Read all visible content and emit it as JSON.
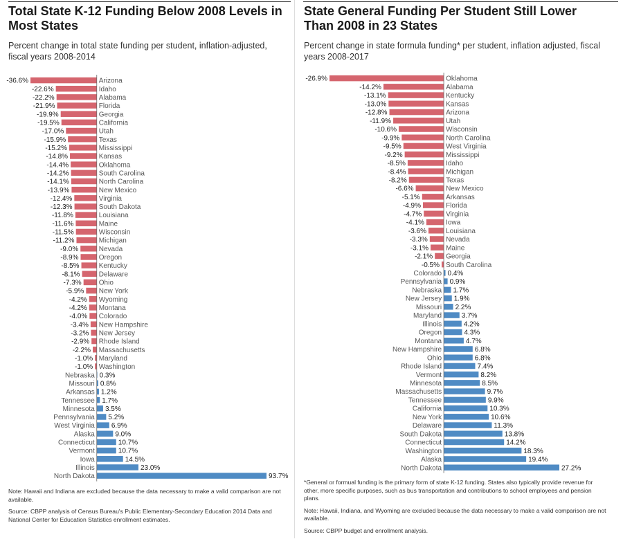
{
  "left": {
    "title": "Total State K-12 Funding Below 2008 Levels in Most States",
    "subtitle": "Percent change in total state funding per student, inflation-adjusted, fiscal years 2008-2014",
    "notes": [
      "Note: Hawaii and Indiana are excluded because the data necessary to make a valid comparison are not available.",
      "Source: CBPP analysis of Census Bureau's Public Elementary-Secondary Education 2014 Data and National Center for Education Statistics enrollment estimates."
    ]
  },
  "right": {
    "title": "State General Funding Per Student Still Lower Than 2008 in 23 States",
    "subtitle": "Percent change in state formula funding* per student, inflation adjusted, fiscal years 2008-2017",
    "notes": [
      "*General or formual funding is the primary form of state K-12 funding. States also typically provide revenue for other, more specific purposes, such as bus transportation and contributions to school employees and pension plans.",
      "Note: Hawaii, Indiana, and Wyoming are excluded because the data necessary to make a valid comparison are not available.",
      "Source: CBPP budget and enrollment analysis."
    ]
  },
  "colors": {
    "negative": "#d5656e",
    "positive": "#4f8bc4"
  },
  "chart_data": [
    {
      "type": "bar",
      "orientation": "horizontal",
      "title": "Total State K-12 Funding Below 2008 Levels in Most States",
      "subtitle": "Percent change in total state funding per student, inflation-adjusted, fiscal years 2008-2014",
      "categories": [
        "Arizona",
        "Idaho",
        "Alabama",
        "Florida",
        "Georgia",
        "California",
        "Utah",
        "Texas",
        "Mississippi",
        "Kansas",
        "Oklahoma",
        "South Carolina",
        "North Carolina",
        "New Mexico",
        "Virginia",
        "South Dakota",
        "Louisiana",
        "Maine",
        "Wisconsin",
        "Michigan",
        "Nevada",
        "Oregon",
        "Kentucky",
        "Delaware",
        "Ohio",
        "New York",
        "Wyoming",
        "Montana",
        "Colorado",
        "New Hampshire",
        "New Jersey",
        "Rhode Island",
        "Massachusetts",
        "Maryland",
        "Washington",
        "Nebraska",
        "Missouri",
        "Arkansas",
        "Tennessee",
        "Minnesota",
        "Pennsylvania",
        "West Virginia",
        "Alaska",
        "Connecticut",
        "Vermont",
        "Iowa",
        "Illinois",
        "North Dakota"
      ],
      "values": [
        -36.6,
        -22.6,
        -22.2,
        -21.9,
        -19.9,
        -19.5,
        -17.0,
        -15.9,
        -15.2,
        -14.8,
        -14.4,
        -14.2,
        -14.1,
        -13.9,
        -12.4,
        -12.3,
        -11.8,
        -11.6,
        -11.5,
        -11.2,
        -9.0,
        -8.9,
        -8.5,
        -8.1,
        -7.3,
        -5.9,
        -4.2,
        -4.2,
        -4.0,
        -3.4,
        -3.2,
        -2.9,
        -2.2,
        -1.0,
        -1.0,
        0.3,
        0.8,
        1.2,
        1.7,
        3.5,
        5.2,
        6.9,
        9.0,
        10.7,
        10.7,
        14.5,
        23.0,
        93.7
      ],
      "labels": [
        "-36.6%",
        "-22.6%",
        "-22.2%",
        "-21.9%",
        "-19.9%",
        "-19.5%",
        "-17.0%",
        "-15.9%",
        "-15.2%",
        "-14.8%",
        "-14.4%",
        "-14.2%",
        "-14.1%",
        "-13.9%",
        "-12.4%",
        "-12.3%",
        "-11.8%",
        "-11.6%",
        "-11.5%",
        "-11.2%",
        "-9.0%",
        "-8.9%",
        "-8.5%",
        "-8.1%",
        "-7.3%",
        "-5.9%",
        "-4.2%",
        "-4.2%",
        "-4.0%",
        "-3.4%",
        "-3.2%",
        "-2.9%",
        "-2.2%",
        "-1.0%",
        "-1.0%",
        "0.3%",
        "0.8%",
        "1.2%",
        "1.7%",
        "3.5%",
        "5.2%",
        "6.9%",
        "9.0%",
        "10.7%",
        "10.7%",
        "14.5%",
        "23.0%",
        "93.7%"
      ],
      "xlim": [
        -36.6,
        93.7
      ],
      "grid": false
    },
    {
      "type": "bar",
      "orientation": "horizontal",
      "title": "State General Funding Per Student Still Lower Than 2008 in 23 States",
      "subtitle": "Percent change in state formula funding* per student, inflation adjusted, fiscal years 2008-2017",
      "categories": [
        "Oklahoma",
        "Alabama",
        "Kentucky",
        "Kansas",
        "Arizona",
        "Utah",
        "Wisconsin",
        "North Carolina",
        "West Virginia",
        "Mississippi",
        "Idaho",
        "Michigan",
        "Texas",
        "New Mexico",
        "Arkansas",
        "Florida",
        "Virginia",
        "Iowa",
        "Louisiana",
        "Nevada",
        "Maine",
        "Georgia",
        "South Carolina",
        "Colorado",
        "Pennsylvania",
        "Nebraska",
        "New Jersey",
        "Missouri",
        "Maryland",
        "Illinois",
        "Oregon",
        "Montana",
        "New Hampshire",
        "Ohio",
        "Rhode Island",
        "Vermont",
        "Minnesota",
        "Massachusetts",
        "Tennessee",
        "California",
        "New York",
        "Delaware",
        "South Dakota",
        "Connecticut",
        "Washington",
        "Alaska",
        "North Dakota"
      ],
      "values": [
        -26.9,
        -14.2,
        -13.1,
        -13.0,
        -12.8,
        -11.9,
        -10.6,
        -9.9,
        -9.5,
        -9.2,
        -8.5,
        -8.4,
        -8.2,
        -6.6,
        -5.1,
        -4.9,
        -4.7,
        -4.1,
        -3.6,
        -3.3,
        -3.1,
        -2.1,
        -0.5,
        0.4,
        0.9,
        1.7,
        1.9,
        2.2,
        3.7,
        4.2,
        4.3,
        4.7,
        6.8,
        6.8,
        7.4,
        8.2,
        8.5,
        9.7,
        9.9,
        10.3,
        10.6,
        11.3,
        13.8,
        14.2,
        18.3,
        19.4,
        27.2
      ],
      "labels": [
        "-26.9%",
        "-14.2%",
        "-13.1%",
        "-13.0%",
        "-12.8%",
        "-11.9%",
        "-10.6%",
        "-9.9%",
        "-9.5%",
        "-9.2%",
        "-8.5%",
        "-8.4%",
        "-8.2%",
        "-6.6%",
        "-5.1%",
        "-4.9%",
        "-4.7%",
        "-4.1%",
        "-3.6%",
        "-3.3%",
        "-3.1%",
        "-2.1%",
        "-0.5%",
        "0.4%",
        "0.9%",
        "1.7%",
        "1.9%",
        "2.2%",
        "3.7%",
        "4.2%",
        "4.3%",
        "4.7%",
        "6.8%",
        "6.8%",
        "7.4%",
        "8.2%",
        "8.5%",
        "9.7%",
        "9.9%",
        "10.3%",
        "10.6%",
        "11.3%",
        "13.8%",
        "14.2%",
        "18.3%",
        "19.4%",
        "27.2%"
      ],
      "xlim": [
        -26.9,
        27.2
      ],
      "grid": false
    }
  ]
}
